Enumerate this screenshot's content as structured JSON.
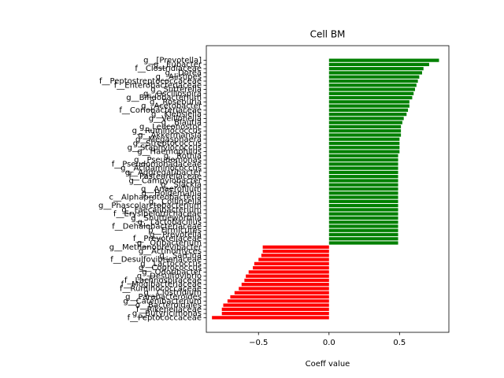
{
  "chart_data": {
    "type": "barh",
    "title": "Cell BM",
    "xlabel": "Coeff value",
    "categories": [
      "g__[Prevotella]",
      "g__Eubacter",
      "f__Clostridiaceae",
      "g__Dorea",
      "g__Alistipes",
      "f__Peptostreptococcaceae",
      "f__Enterobacteriaceae",
      "g__Sutterella",
      "g__Oscillospira",
      "g__Bifidobacterium",
      "g__Roseburia",
      "g__Acetobacter",
      "f__Coriobacteriaceae",
      "g__Klebsiella",
      "g__Veillonella",
      "g__Blautia",
      "g__Leuconostoc",
      "g__Ruminococcus",
      "g__Akkermansia",
      "g__Megasphaera",
      "g__Streptococcus",
      "g__Staphylococcus",
      "g__Haemophilus",
      "g__Rothia",
      "g__Pseudomonas",
      "f__Pseudomonadaceae",
      "g__Acidaminococcus",
      "g__Aggregatibacter",
      "f__Pasteurellaceae",
      "g__Campylobacter",
      "g__Slackia",
      "g__Anaerofilum",
      "g__Holdemania",
      "c__Alphaproteobacteria",
      "g__Collinsella",
      "g__Phascolarctobacterium",
      "g__Faecalibacterium",
      "f__Erysipelotrichaceae",
      "g__Shuttleworthia",
      "g__Lactobacillus",
      "f__Dehalobacteriaceae",
      "p__Firmicutes",
      "g__Prevotella",
      "f__Prevotellaceae",
      "g__Oribacterium",
      "g__Methanobrevibacter",
      "g__Actinomyces",
      "g__Sarcina",
      "f__Desulfovibrionaceae",
      "g__Lactococcus",
      "g__Coprococcus",
      "g__Odoribacter",
      "g__Desulfovibrio",
      "f__Lachnospiraceae",
      "f__Mogibacteriaceae",
      "f__Ruminococcaceae",
      "g__Clostridium",
      "g__Parabacteroides",
      "g__Catenibacterium",
      "o__Bacteroidales",
      "f__Rikenellaceae",
      "g__Butyricimonas",
      "f__Peptococcaceae"
    ],
    "values": [
      0.78,
      0.71,
      0.67,
      0.66,
      0.64,
      0.63,
      0.62,
      0.61,
      0.6,
      0.59,
      0.57,
      0.57,
      0.56,
      0.55,
      0.53,
      0.52,
      0.51,
      0.51,
      0.51,
      0.5,
      0.5,
      0.5,
      0.5,
      0.49,
      0.49,
      0.49,
      0.49,
      0.49,
      0.49,
      0.49,
      0.49,
      0.49,
      0.49,
      0.49,
      0.49,
      0.49,
      0.49,
      0.49,
      0.49,
      0.49,
      0.49,
      0.49,
      0.49,
      0.49,
      0.49,
      -0.47,
      -0.47,
      -0.48,
      -0.5,
      -0.53,
      -0.54,
      -0.57,
      -0.59,
      -0.6,
      -0.62,
      -0.64,
      -0.67,
      -0.7,
      -0.72,
      -0.75,
      -0.76,
      -0.76,
      -0.83
    ],
    "positive_color": "green",
    "negative_color": "red",
    "xlim": [
      -0.87,
      0.85
    ],
    "xticks": [
      {
        "value": -0.5,
        "label": "−0.5"
      },
      {
        "value": 0.0,
        "label": "0.0"
      },
      0.5
    ]
  }
}
